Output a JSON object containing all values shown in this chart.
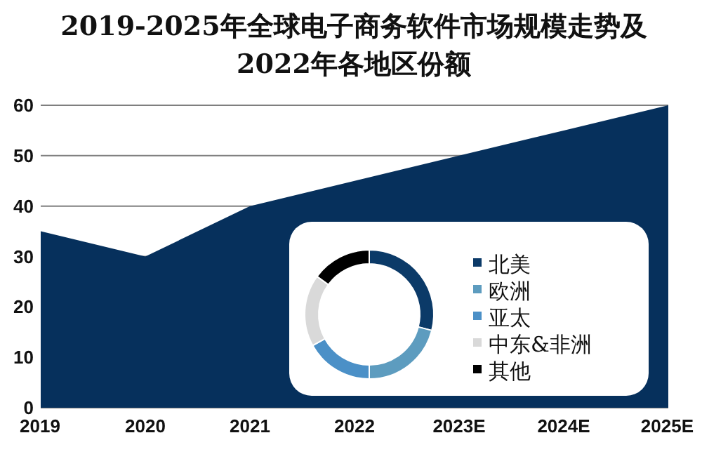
{
  "chart_data": [
    {
      "type": "area",
      "title": "2019-2025年全球电子商务软件市场规模走势及2022年各地区份额",
      "categories": [
        "2019",
        "2020",
        "2021",
        "2022",
        "2023E",
        "2024E",
        "2025E"
      ],
      "values": [
        35,
        30,
        40,
        45,
        50,
        55,
        60
      ],
      "color": "#06305c",
      "ylim": [
        0,
        60
      ],
      "yticks": [
        0,
        10,
        20,
        30,
        40,
        50,
        60
      ],
      "grid": "y"
    },
    {
      "type": "donut",
      "categories": [
        "北美",
        "欧洲",
        "亚太",
        "中东&非洲",
        "其他"
      ],
      "values": [
        29,
        21,
        17,
        18,
        15
      ],
      "colors": [
        "#0b3a68",
        "#5d9cbf",
        "#4b90c7",
        "#d9d9d9",
        "#000000"
      ],
      "legend": "right"
    }
  ]
}
